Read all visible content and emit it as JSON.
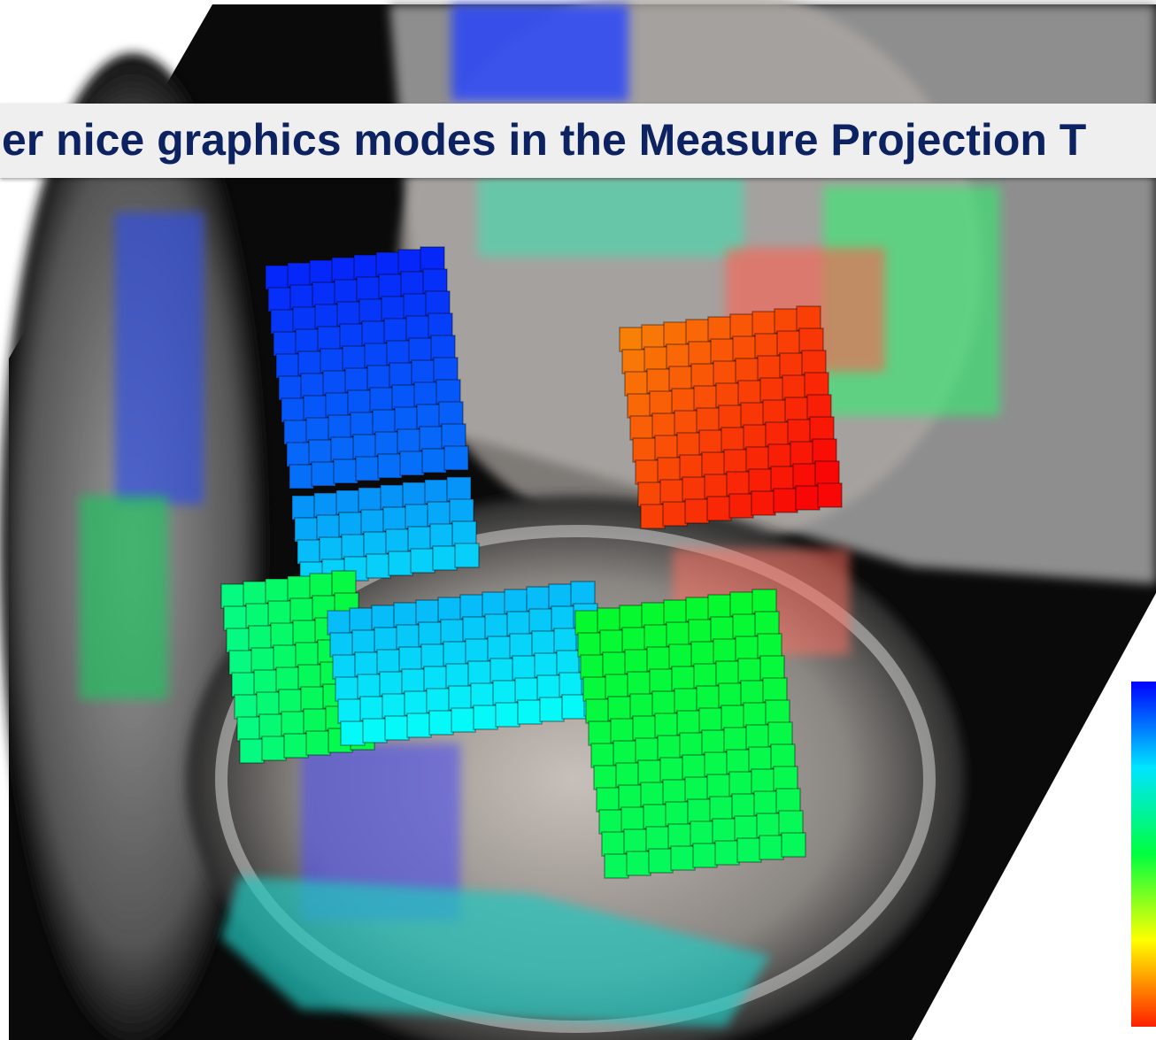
{
  "banner": {
    "title": "er nice graphics modes in the Measure Projection T"
  }
}
